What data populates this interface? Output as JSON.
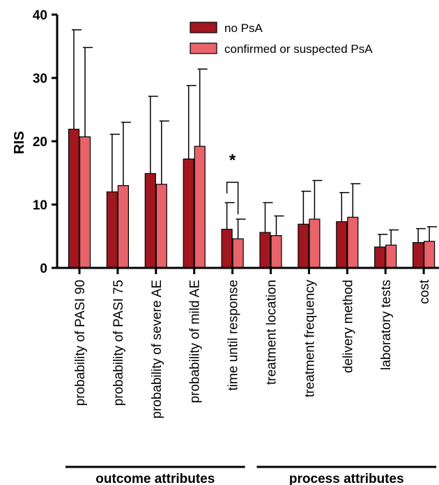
{
  "chart_data": {
    "type": "bar",
    "ylabel": "RIS",
    "ylim": [
      0,
      40
    ],
    "yticks": [
      "0",
      "10",
      "20",
      "30",
      "40"
    ],
    "categories": [
      "probability of PASI 90",
      "probability of PASI 75",
      "probability of severe AE",
      "probability of mild AE",
      "time until response",
      "treatment location",
      "treatment frequency",
      "delivery method",
      "laboratory tests",
      "cost"
    ],
    "series": [
      {
        "name": "no PsA",
        "color": "#a3161f",
        "values": [
          21.9,
          12.0,
          14.9,
          17.2,
          6.1,
          5.6,
          6.9,
          7.3,
          3.3,
          4.0
        ],
        "error_upper": [
          37.6,
          21.1,
          27.1,
          28.8,
          10.3,
          10.3,
          12.1,
          11.9,
          5.3,
          6.2
        ]
      },
      {
        "name": "confirmed or suspected PsA",
        "color": "#e8636a",
        "values": [
          20.7,
          13.0,
          13.2,
          19.2,
          4.6,
          5.1,
          7.7,
          8.0,
          3.6,
          4.2
        ],
        "error_upper": [
          34.8,
          23.0,
          23.2,
          31.4,
          7.7,
          8.2,
          13.8,
          13.3,
          6.0,
          6.5
        ]
      }
    ],
    "annotations": [
      {
        "text": "*",
        "category": "time until response"
      }
    ],
    "groups": [
      {
        "label": "outcome attributes",
        "categories": [
          "probability of PASI 90",
          "probability of PASI 75",
          "probability of severe AE",
          "probability of mild AE",
          "time until response"
        ]
      },
      {
        "label": "process attributes",
        "categories": [
          "treatment location",
          "treatment frequency",
          "delivery method",
          "laboratory tests",
          "cost"
        ]
      }
    ],
    "legend_position": "top-right",
    "grid": false
  }
}
